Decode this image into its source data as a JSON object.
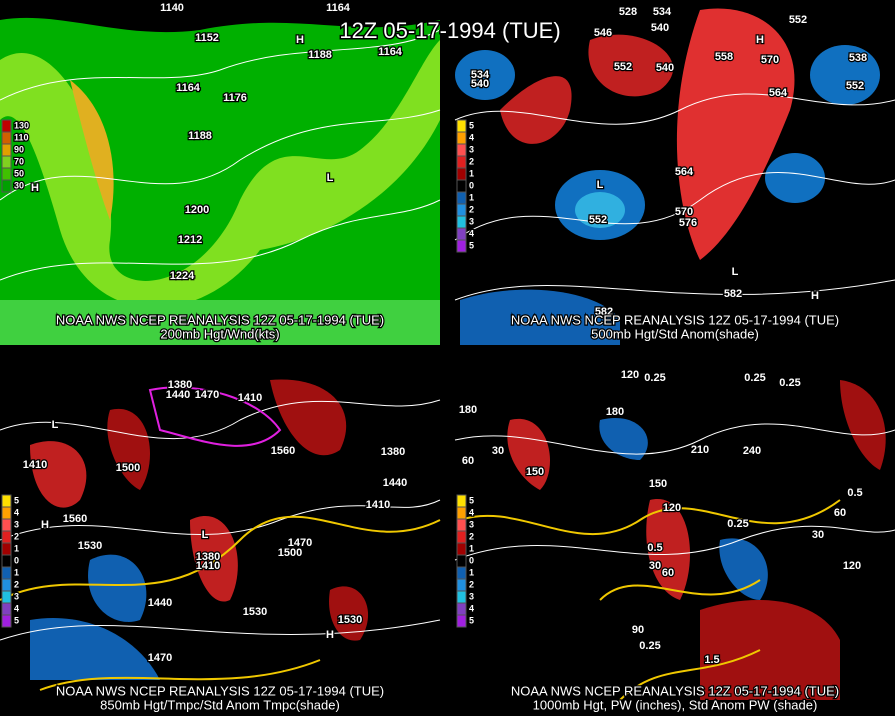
{
  "title": "12Z 05-17-1994 (TUE)",
  "panels": [
    {
      "caption": "NOAA NWS NCEP REANALYSIS 12Z 05-17-1994 (TUE)",
      "subtitle": "200mb Hgt/Wnd(kts)",
      "legend": [
        "130",
        "110",
        "90",
        "70",
        "50",
        "30"
      ],
      "labels": [
        "1140",
        "1164",
        "1152",
        "1188",
        "1164",
        "1164",
        "1176",
        "1188",
        "1200",
        "1212",
        "1224",
        "H",
        "H",
        "L"
      ]
    },
    {
      "caption": "NOAA NWS NCEP REANALYSIS 12Z 05-17-1994 (TUE)",
      "subtitle": "500mb Hgt/Std Anom(shade)",
      "legend": [
        "5",
        "4",
        "3",
        "2",
        "1",
        "0",
        "1",
        "2",
        "3",
        "4",
        "5"
      ],
      "labels": [
        "528",
        "534",
        "546",
        "540",
        "552",
        "H",
        "570",
        "552",
        "540",
        "558",
        "534",
        "540",
        "538",
        "552",
        "564",
        "564",
        "570",
        "576",
        "L",
        "552",
        "L",
        "582",
        "582",
        "H"
      ]
    },
    {
      "caption": "NOAA NWS NCEP REANALYSIS 12Z 05-17-1994 (TUE)",
      "subtitle": "850mb Hgt/Tmpc/Std Anom Tmpc(shade)",
      "legend": [
        "5",
        "4",
        "3",
        "2",
        "1",
        "0",
        "1",
        "2",
        "3",
        "4",
        "5"
      ],
      "labels": [
        "1380",
        "1440",
        "1470",
        "1410",
        "1500",
        "1560",
        "1380",
        "1440",
        "1410",
        "1410",
        "1560",
        "1530",
        "H",
        "1470",
        "1500",
        "1380",
        "1410",
        "1440",
        "1530",
        "1530",
        "1470",
        "H",
        "L",
        "L"
      ]
    },
    {
      "caption": "NOAA NWS NCEP REANALYSIS 12Z 05-17-1994 (TUE)",
      "subtitle": "1000mb Hgt, PW (inches), Std Anom PW (shade)",
      "legend": [
        "5",
        "4",
        "3",
        "2",
        "1",
        "0",
        "1",
        "2",
        "3",
        "4",
        "5"
      ],
      "labels": [
        "120",
        "0.25",
        "0.25",
        "0.25",
        "180",
        "180",
        "60",
        "30",
        "150",
        "210",
        "240",
        "150",
        "120",
        "0.25",
        "0.5",
        "30",
        "60",
        "120",
        "60",
        "30",
        "90",
        "0.25",
        "1.5",
        "0.5"
      ]
    }
  ]
}
